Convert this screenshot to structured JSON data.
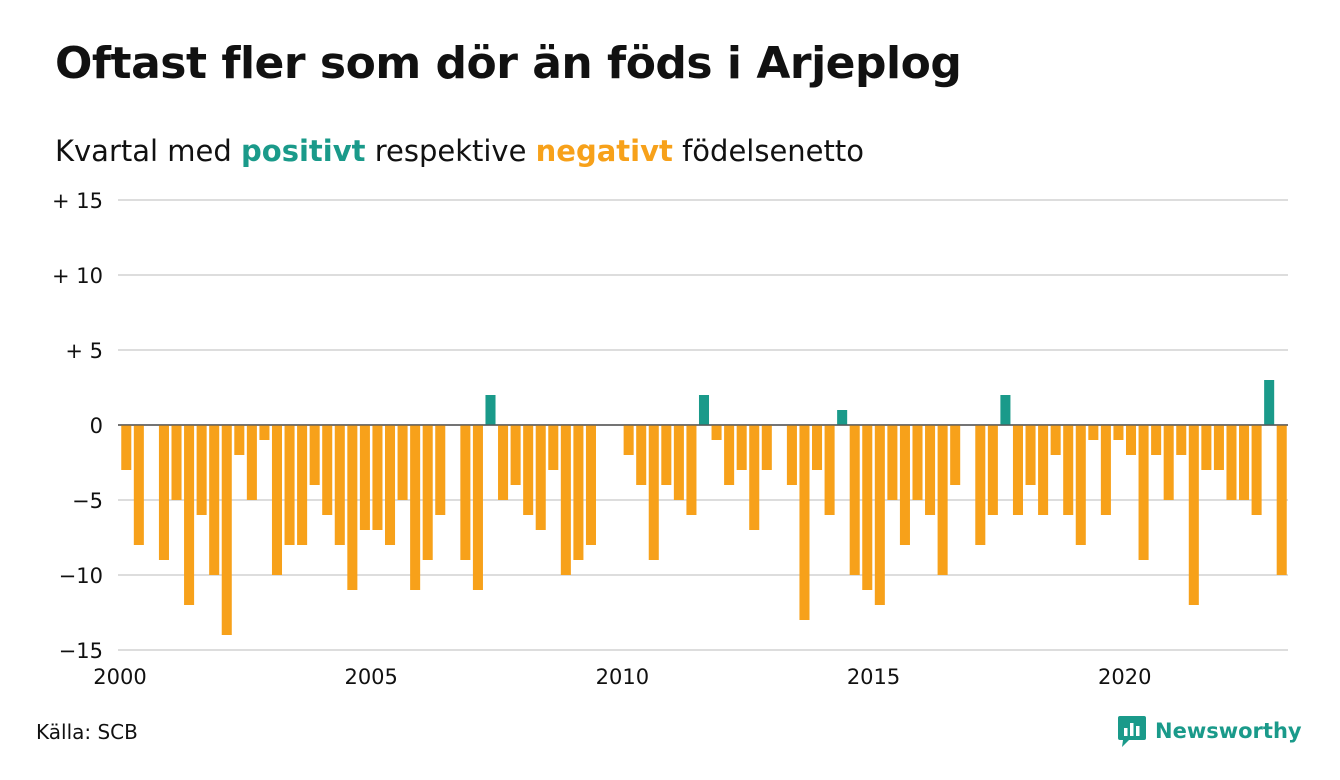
{
  "title": "Oftast fler som dör än föds i Arjeplog",
  "subtitle": {
    "prefix": "Kvartal med ",
    "positive_word": "positivt",
    "middle": " respektive ",
    "negative_word": "negativt",
    "suffix": " födelsenetto"
  },
  "colors": {
    "positive": "#1a9a8a",
    "negative": "#f7a11a",
    "grid": "#dddddd",
    "zero_line": "#555555"
  },
  "source": "Källa: SCB",
  "logo": {
    "text": "Newsworthy",
    "icon": "newsworthy-logo-icon",
    "color": "#1a9a8a"
  },
  "chart_data": {
    "type": "bar",
    "title": "Oftast fler som dör än föds i Arjeplog",
    "xlabel": "",
    "ylabel": "",
    "x_start": "2000",
    "x_step": "quarter",
    "xlim": [
      2000,
      2023.25
    ],
    "ylim": [
      -15,
      15
    ],
    "y_ticks": [
      15,
      10,
      5,
      0,
      -5,
      -10,
      -15
    ],
    "y_tick_labels": [
      "+ 15",
      "+ 10",
      "+  5",
      "0",
      "−5",
      "−10",
      "−15"
    ],
    "x_ticks": [
      2000,
      2005,
      2010,
      2015,
      2020
    ],
    "x_tick_labels": [
      "2000",
      "2005",
      "2010",
      "2015",
      "2020"
    ],
    "grid": true,
    "values": [
      -3,
      -8,
      0,
      -9,
      -5,
      -12,
      -6,
      -10,
      -14,
      -2,
      -5,
      -1,
      -10,
      -8,
      -8,
      -4,
      -6,
      -8,
      -11,
      -7,
      -7,
      -8,
      -5,
      -11,
      -9,
      -6,
      0,
      -9,
      -11,
      2,
      -5,
      -4,
      -6,
      -7,
      -3,
      -10,
      -9,
      -8,
      0,
      0,
      -2,
      -4,
      -9,
      -4,
      -5,
      -6,
      2,
      -1,
      -4,
      -3,
      -7,
      -3,
      0,
      -4,
      -13,
      -3,
      -6,
      1,
      -10,
      -11,
      -12,
      -5,
      -8,
      -5,
      -6,
      -10,
      -4,
      0,
      -8,
      -6,
      2,
      -6,
      -4,
      -6,
      -2,
      -6,
      -8,
      -1,
      -6,
      -1,
      -2,
      -9,
      -2,
      -5,
      -2,
      -12,
      -3,
      -3,
      -5,
      -5,
      -6,
      3,
      -10
    ]
  }
}
